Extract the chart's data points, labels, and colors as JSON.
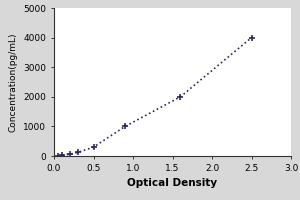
{
  "title": "",
  "xlabel": "Optical Density",
  "ylabel": "Concentration(pg/mL)",
  "x_data": [
    0.05,
    0.1,
    0.2,
    0.3,
    0.5,
    0.9,
    1.6,
    2.5
  ],
  "y_data": [
    0,
    20,
    60,
    120,
    300,
    1000,
    2000,
    4000
  ],
  "xlim": [
    0,
    3
  ],
  "ylim": [
    0,
    5000
  ],
  "xticks": [
    0,
    0.5,
    1,
    1.5,
    2,
    2.5,
    3
  ],
  "yticks": [
    0,
    1000,
    2000,
    3000,
    4000,
    5000
  ],
  "line_color": "#2a2a5a",
  "marker": "+",
  "marker_color": "#2a2a5a",
  "background_color": "#d8d8d8",
  "plot_bg_color": "#ffffff",
  "linestyle": "dotted",
  "marker_size": 5,
  "marker_linewidth": 1.2,
  "xlabel_fontsize": 7.5,
  "ylabel_fontsize": 6.5,
  "tick_fontsize": 6.5,
  "linewidth": 1.2
}
